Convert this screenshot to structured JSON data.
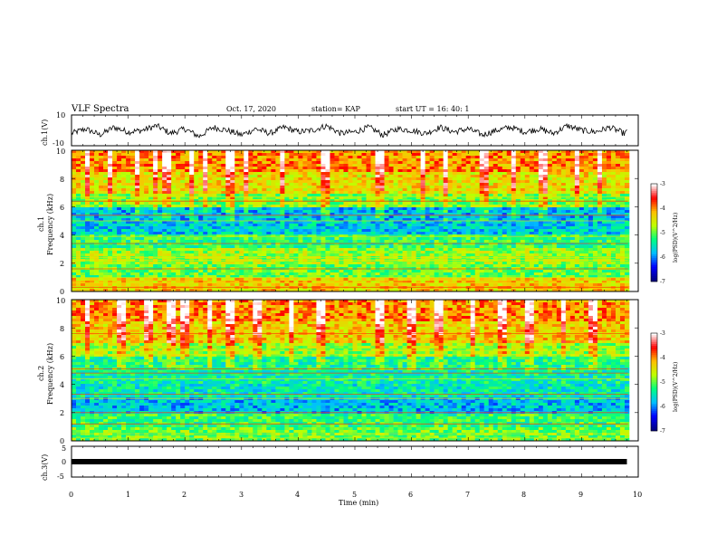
{
  "header": {
    "title": "VLF Spectra",
    "date": "Oct. 17, 2020",
    "station": "station= KAP",
    "start_time": "start UT =   16: 40: 1"
  },
  "chart_data": [
    {
      "type": "line",
      "panel": "ch1-waveform",
      "ylabel": "ch.1(V)",
      "ylim": [
        -10,
        10
      ],
      "y_ticks": [
        "10",
        "-10"
      ],
      "xlim": [
        0,
        10
      ],
      "series": [
        {
          "color": "#000000",
          "x": [
            0,
            0.25,
            0.5,
            0.75,
            1,
            1.25,
            1.5,
            1.75,
            2,
            2.25,
            2.5,
            2.75,
            3,
            3.25,
            3.5,
            3.75,
            4,
            4.25,
            4.5,
            4.75,
            5,
            5.25,
            5.5,
            5.75,
            6,
            6.25,
            6.5,
            6.75,
            7,
            7.25,
            7.5,
            7.75,
            8,
            8.25,
            8.5,
            8.75,
            9,
            9.25,
            9.5,
            9.75,
            9.8
          ],
          "y": [
            -2,
            1,
            -3,
            2,
            -1,
            0,
            3,
            -2,
            1,
            -4,
            2,
            0,
            -3,
            1,
            -2,
            2,
            -1,
            0,
            3,
            -2,
            -1,
            2,
            -3,
            1,
            0,
            -2,
            2,
            -1,
            1,
            -3,
            0,
            2,
            -1,
            1,
            -2,
            3,
            0,
            -1,
            2,
            -2,
            -1
          ]
        }
      ]
    },
    {
      "type": "heatmap",
      "panel": "ch1-spectrogram",
      "ylabel": "ch.1",
      "ylabel2": "Frequency (kHz)",
      "xlim": [
        0,
        10
      ],
      "ylim": [
        0,
        10
      ],
      "y_ticks": [
        "0",
        "2",
        "4",
        "6",
        "8",
        "10"
      ],
      "color_scale": {
        "label": "log(PSD)(V^2/Hz)",
        "range": [
          -7,
          -3
        ],
        "ticks": [
          "-3",
          "-4",
          "-5",
          "-6",
          "-7"
        ],
        "colors": [
          "#00007f",
          "#0000ff",
          "#00bfff",
          "#00ff7f",
          "#bfff00",
          "#ffbf00",
          "#ff0000",
          "#ffffff"
        ]
      },
      "band_levels_by_khz": [
        {
          "f_from": 0,
          "f_to": 1,
          "log_psd": -4.3
        },
        {
          "f_from": 1,
          "f_to": 2,
          "log_psd": -5.0
        },
        {
          "f_from": 2,
          "f_to": 3,
          "log_psd": -4.8
        },
        {
          "f_from": 3,
          "f_to": 4,
          "log_psd": -5.2
        },
        {
          "f_from": 4,
          "f_to": 5,
          "log_psd": -5.7
        },
        {
          "f_from": 5,
          "f_to": 6,
          "log_psd": -5.8
        },
        {
          "f_from": 6,
          "f_to": 7,
          "log_psd": -4.9
        },
        {
          "f_from": 7,
          "f_to": 8.5,
          "log_psd": -4.4
        },
        {
          "f_from": 8.5,
          "f_to": 10,
          "log_psd": -4.0
        }
      ],
      "lines_khz": [
        0.3,
        0.6,
        1.0,
        1.6,
        2.2,
        2.4,
        3.4,
        3.9,
        5.0,
        5.4,
        6.4,
        6.7
      ],
      "bursts_min": [
        0.3,
        0.7,
        1.15,
        1.5,
        1.7,
        2.1,
        2.35,
        2.8,
        3.1,
        3.7,
        4.5,
        5.4,
        5.5,
        6.2,
        6.6,
        7.3,
        7.8,
        8.3,
        8.9,
        9.3
      ]
    },
    {
      "type": "heatmap",
      "panel": "ch2-spectrogram",
      "ylabel": "ch.2",
      "ylabel2": "Frequency (kHz)",
      "xlim": [
        0,
        10
      ],
      "ylim": [
        0,
        10
      ],
      "y_ticks": [
        "0",
        "2",
        "4",
        "6",
        "8",
        "10"
      ],
      "color_scale": {
        "label": "log(PSD)(V^2/Hz)",
        "range": [
          -7,
          -3
        ],
        "ticks": [
          "-3",
          "-4",
          "-5",
          "-6",
          "-7"
        ],
        "colors": [
          "#00007f",
          "#0000ff",
          "#00bfff",
          "#00ff7f",
          "#bfff00",
          "#ffbf00",
          "#ff0000",
          "#ffffff"
        ]
      },
      "band_levels_by_khz": [
        {
          "f_from": 0,
          "f_to": 1,
          "log_psd": -5.0
        },
        {
          "f_from": 1,
          "f_to": 2,
          "log_psd": -5.2
        },
        {
          "f_from": 2,
          "f_to": 3,
          "log_psd": -5.8
        },
        {
          "f_from": 3,
          "f_to": 4,
          "log_psd": -5.5
        },
        {
          "f_from": 4,
          "f_to": 5,
          "log_psd": -5.4
        },
        {
          "f_from": 5,
          "f_to": 6,
          "log_psd": -5.3
        },
        {
          "f_from": 6,
          "f_to": 7,
          "log_psd": -4.8
        },
        {
          "f_from": 7,
          "f_to": 8.5,
          "log_psd": -4.3
        },
        {
          "f_from": 8.5,
          "f_to": 10,
          "log_psd": -4.0
        }
      ],
      "lines_khz": [
        0.2,
        0.5,
        1.2,
        2.0,
        3.0,
        3.3,
        4.4,
        4.8,
        5.1,
        6.1,
        6.4,
        7.6
      ],
      "bursts_min": [
        0.3,
        0.9,
        1.35,
        1.75,
        2.0,
        2.45,
        2.8,
        3.3,
        3.9,
        4.4,
        5.4,
        5.5,
        6.0,
        6.5,
        7.1,
        7.6,
        8.1,
        8.7,
        9.2
      ]
    },
    {
      "type": "line",
      "panel": "ch3-waveform",
      "ylabel": "ch.3(V)",
      "xlabel": "Time (min)",
      "ylim": [
        -5,
        5
      ],
      "y_ticks": [
        "5",
        "0",
        "-5"
      ],
      "xlim": [
        0,
        10
      ],
      "x_ticks": [
        "0",
        "1",
        "2",
        "3",
        "4",
        "5",
        "6",
        "7",
        "8",
        "9",
        "10"
      ],
      "series": [
        {
          "color": "#000000",
          "x": [
            0,
            9.8
          ],
          "y": [
            0,
            0
          ]
        }
      ]
    }
  ]
}
